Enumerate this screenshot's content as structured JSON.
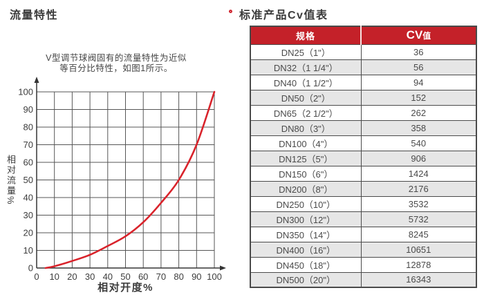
{
  "page": {
    "left_section_title": "流量特性",
    "right_section_title": "标准产品Cv值表"
  },
  "note": {
    "line1": "V型调节球阀固有的流量特性为近似",
    "line2": "等百分比特性，如图1所示。"
  },
  "chart_data": {
    "type": "line",
    "title": "",
    "xlabel": "相对开度%",
    "ylabel": "相对流量%",
    "xlim": [
      0,
      100
    ],
    "ylim": [
      0,
      100
    ],
    "xticks": [
      0,
      10,
      20,
      30,
      40,
      50,
      60,
      70,
      80,
      90,
      100
    ],
    "yticks": [
      0,
      10,
      20,
      30,
      40,
      50,
      60,
      70,
      80,
      90,
      100
    ],
    "grid": true,
    "legend": false,
    "series": [
      {
        "name": "equal-percentage-flow-curve",
        "color": "#d9232b",
        "x": [
          5,
          10,
          20,
          30,
          40,
          50,
          60,
          70,
          80,
          90,
          100
        ],
        "y": [
          0,
          1,
          4,
          7.5,
          12.5,
          18,
          26,
          37,
          50,
          70,
          100
        ]
      }
    ]
  },
  "table": {
    "col1_header": "规格",
    "col2_header_cv": "CV",
    "col2_header_zhi": "值",
    "rows": [
      [
        "DN25（1\"）",
        "36"
      ],
      [
        "DN32（1 1/4\"）",
        "56"
      ],
      [
        "DN40（1 1/2\"）",
        "94"
      ],
      [
        "DN50（2\"）",
        "152"
      ],
      [
        "DN65（2 1/2\"）",
        "262"
      ],
      [
        "DN80（3\"）",
        "358"
      ],
      [
        "DN100（4\"）",
        "540"
      ],
      [
        "DN125（5\"）",
        "906"
      ],
      [
        "DN150（6\"）",
        "1424"
      ],
      [
        "DN200（8\"）",
        "2176"
      ],
      [
        "DN250（10\"）",
        "3532"
      ],
      [
        "DN300（12\"）",
        "5732"
      ],
      [
        "DN350（14\"）",
        "8245"
      ],
      [
        "DN400（16\"）",
        "10651"
      ],
      [
        "DN450（18\"）",
        "12878"
      ],
      [
        "DN500（20\"）",
        "16343"
      ]
    ]
  },
  "colors": {
    "accent_bullet": "#cf2630",
    "table_header_bg": "#c42129",
    "table_header_text": "#ffffff",
    "row_alt_bg": "#e6e6e6",
    "table_border": "#4a4a4a",
    "grid_line": "#555555",
    "axis": "#333333",
    "curve": "#d9232b",
    "text_dark": "#3b3b3b"
  }
}
